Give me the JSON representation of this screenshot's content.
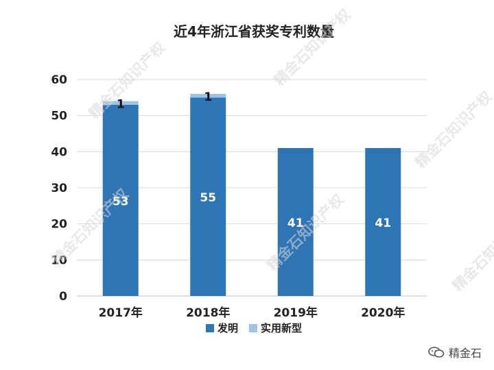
{
  "chart_data": {
    "type": "bar",
    "stacked": true,
    "title": "近4年浙江省获奖专利数量",
    "categories": [
      "2017年",
      "2018年",
      "2019年",
      "2020年"
    ],
    "series": [
      {
        "name": "发明",
        "values": [
          53,
          55,
          41,
          41
        ],
        "color": "#2e75b6",
        "labels": [
          "53",
          "55",
          "41",
          "41"
        ]
      },
      {
        "name": "实用新型",
        "values": [
          1,
          1,
          0,
          0
        ],
        "color": "#9dc3e6",
        "labels": [
          "1",
          "1",
          "",
          ""
        ]
      }
    ],
    "ylim": [
      0,
      60
    ],
    "yticks": [
      0,
      10,
      20,
      30,
      40,
      50,
      60
    ],
    "grid": true,
    "legend": "bottom"
  },
  "watermark": {
    "text": "精金石知识产权"
  },
  "brand": {
    "name": "精金石",
    "icon": "wechat-icon"
  }
}
